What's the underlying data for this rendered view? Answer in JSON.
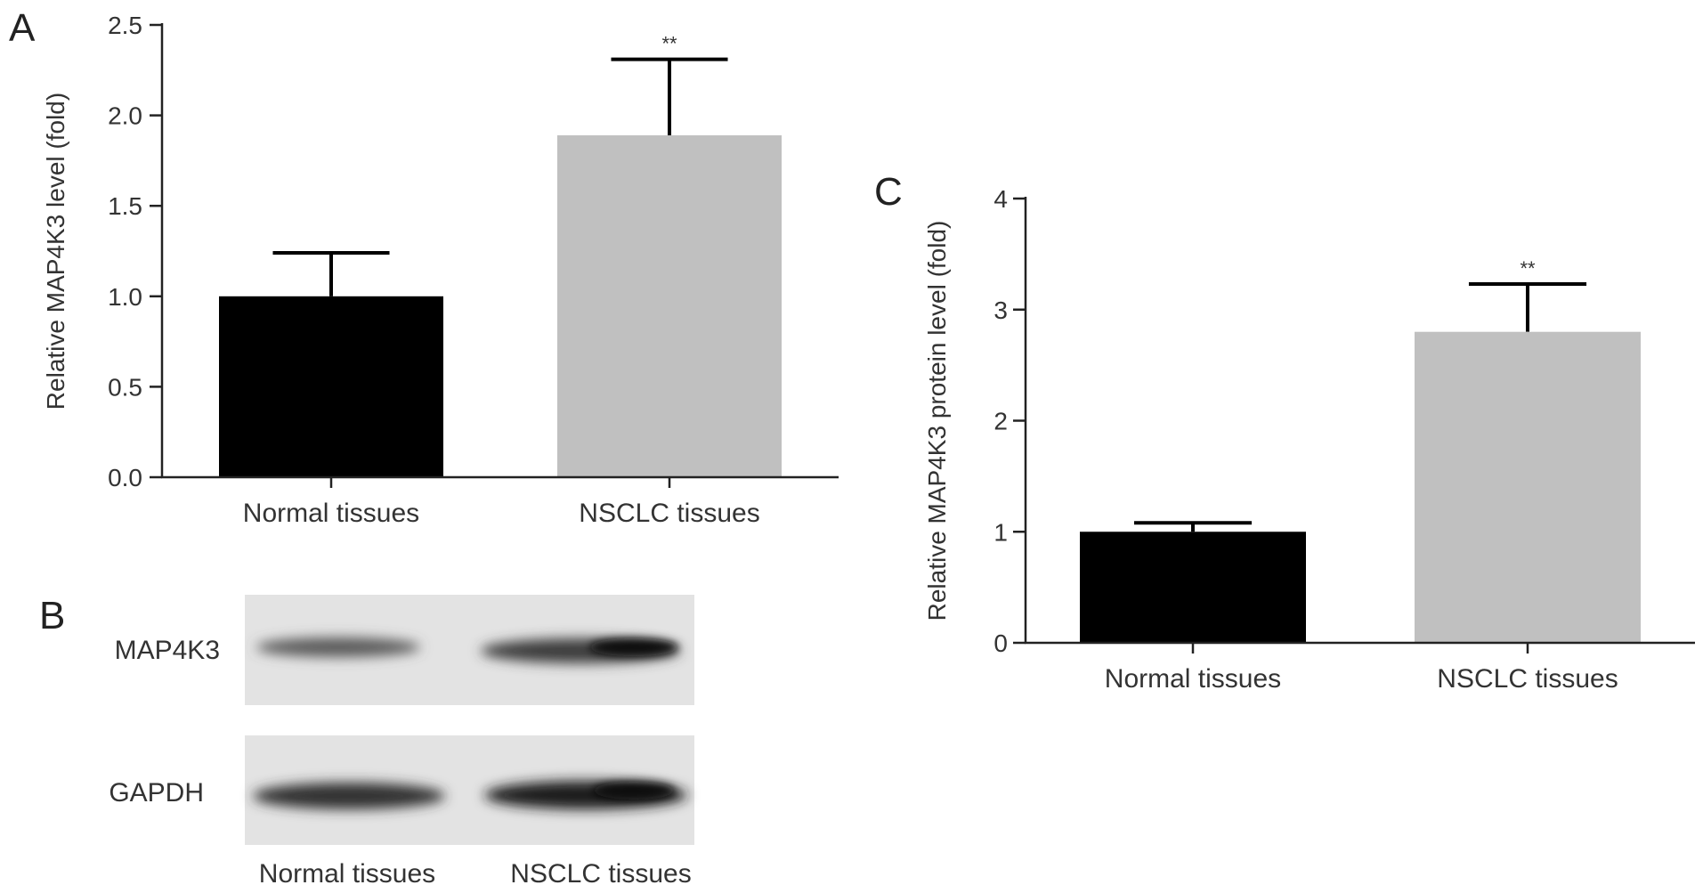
{
  "panels": {
    "a": {
      "letter": "A"
    },
    "b": {
      "letter": "B",
      "rows": [
        "MAP4K3",
        "GAPDH"
      ],
      "lanes": [
        "Normal tissues",
        "NSCLC tissues"
      ]
    },
    "c": {
      "letter": "C"
    }
  },
  "colors": {
    "normal": "#000000",
    "nsclc": "#c0c0c0",
    "axis": "#222222"
  },
  "chart_data": [
    {
      "id": "A",
      "type": "bar",
      "categories": [
        "Normal tissues",
        "NSCLC tissues"
      ],
      "values": [
        1.0,
        1.89
      ],
      "errors": [
        0.24,
        0.42
      ],
      "significance": [
        "",
        "**"
      ],
      "ylabel": "Relative MAP4K3 level (fold)",
      "ylim": [
        0,
        2.5
      ],
      "yticks": [
        0,
        0.5,
        1.0,
        1.5,
        2.0,
        2.5
      ],
      "ytick_labels": [
        "0.0",
        "0.5",
        "1.0",
        "1.5",
        "2.0",
        "2.5"
      ],
      "grid": false
    },
    {
      "id": "C",
      "type": "bar",
      "categories": [
        "Normal tissues",
        "NSCLC tissues"
      ],
      "values": [
        1.0,
        2.8
      ],
      "errors": [
        0.08,
        0.43
      ],
      "significance": [
        "",
        "**"
      ],
      "ylabel": "Relative MAP4K3 protein level (fold)",
      "ylim": [
        0,
        4
      ],
      "yticks": [
        0,
        1,
        2,
        3,
        4
      ],
      "ytick_labels": [
        "0",
        "1",
        "2",
        "3",
        "4"
      ],
      "grid": false
    }
  ]
}
